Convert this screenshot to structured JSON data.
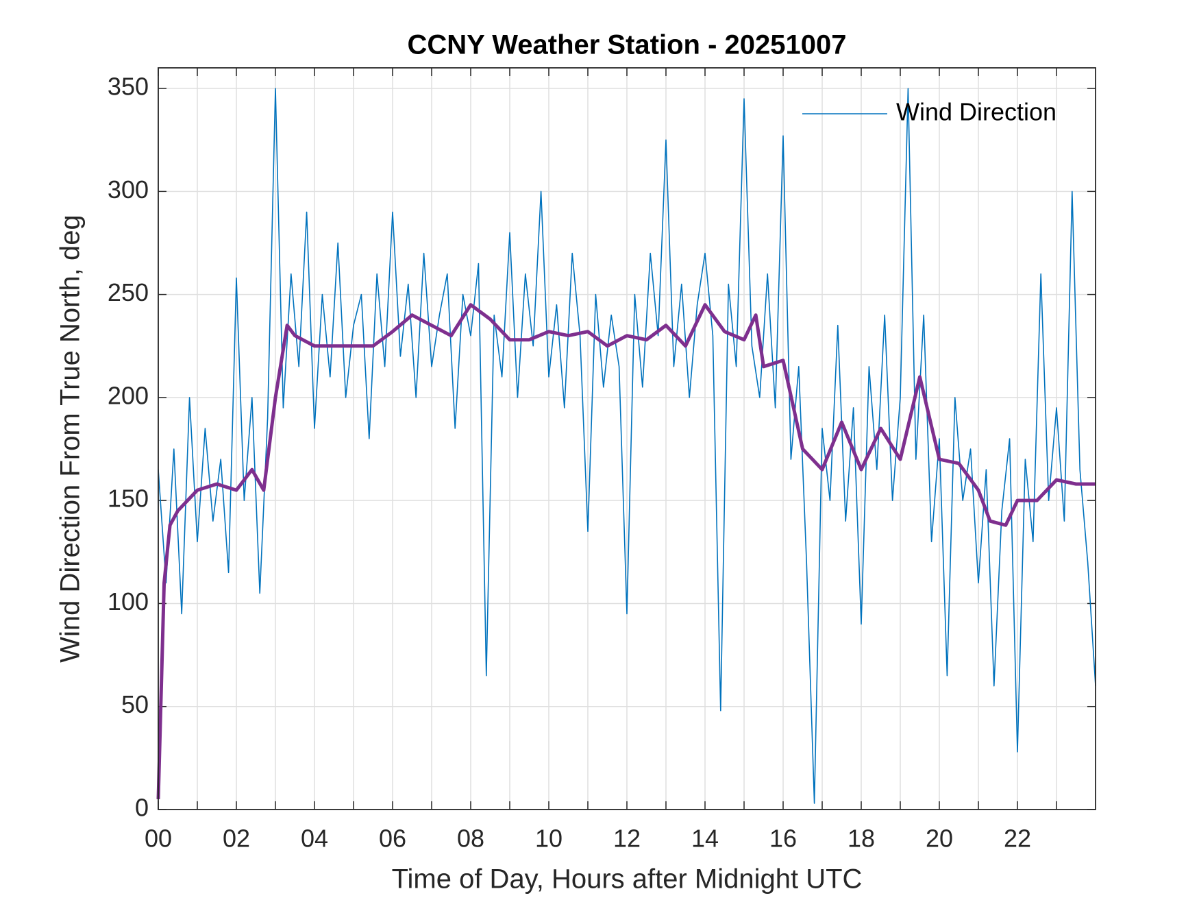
{
  "chart_data": {
    "type": "line",
    "title": "CCNY Weather Station - 20251007",
    "xlabel": "Time of Day, Hours after Midnight UTC",
    "ylabel": "Wind Direction From True North, deg",
    "xlim": [
      0,
      24
    ],
    "ylim": [
      0,
      360
    ],
    "xticks": [
      {
        "value": 0,
        "label": "00"
      },
      {
        "value": 2,
        "label": "02"
      },
      {
        "value": 4,
        "label": "04"
      },
      {
        "value": 6,
        "label": "06"
      },
      {
        "value": 8,
        "label": "08"
      },
      10,
      12,
      14,
      16,
      18,
      20,
      22
    ],
    "minor_xticks": [
      1,
      3,
      5,
      7,
      9,
      11,
      13,
      15,
      17,
      19,
      21,
      23
    ],
    "yticks": [
      0,
      50,
      100,
      150,
      200,
      250,
      300,
      350
    ],
    "grid": true,
    "legend": "top-right",
    "series": [
      {
        "name": "Wind Direction",
        "color": "#0072bd",
        "x": [
          0,
          0.2,
          0.4,
          0.6,
          0.8,
          1,
          1.2,
          1.4,
          1.6,
          1.8,
          2,
          2.2,
          2.4,
          2.6,
          2.8,
          3,
          3.2,
          3.4,
          3.6,
          3.8,
          4,
          4.2,
          4.4,
          4.6,
          4.8,
          5,
          5.2,
          5.4,
          5.6,
          5.8,
          6,
          6.2,
          6.4,
          6.6,
          6.8,
          7,
          7.2,
          7.4,
          7.6,
          7.8,
          8,
          8.2,
          8.4,
          8.6,
          8.8,
          9,
          9.2,
          9.4,
          9.6,
          9.8,
          10,
          10.2,
          10.4,
          10.6,
          10.8,
          11,
          11.2,
          11.4,
          11.6,
          11.8,
          12,
          12.2,
          12.4,
          12.6,
          12.8,
          13,
          13.2,
          13.4,
          13.6,
          13.8,
          14,
          14.2,
          14.4,
          14.6,
          14.8,
          15,
          15.2,
          15.4,
          15.6,
          15.8,
          16,
          16.2,
          16.4,
          16.6,
          16.8,
          17,
          17.2,
          17.4,
          17.6,
          17.8,
          18,
          18.2,
          18.4,
          18.6,
          18.8,
          19,
          19.2,
          19.4,
          19.6,
          19.8,
          20,
          20.2,
          20.4,
          20.6,
          20.8,
          21,
          21.2,
          21.4,
          21.6,
          21.8,
          22,
          22.2,
          22.4,
          22.6,
          22.8,
          23,
          23.2,
          23.4,
          23.6,
          23.8,
          24
        ],
        "values": [
          165,
          110,
          175,
          95,
          200,
          130,
          185,
          140,
          170,
          115,
          258,
          150,
          200,
          105,
          190,
          350,
          195,
          260,
          215,
          290,
          185,
          250,
          210,
          275,
          200,
          235,
          250,
          180,
          260,
          215,
          290,
          220,
          255,
          200,
          270,
          215,
          240,
          260,
          185,
          250,
          230,
          265,
          65,
          240,
          210,
          280,
          200,
          260,
          225,
          300,
          210,
          245,
          195,
          270,
          230,
          135,
          250,
          205,
          240,
          215,
          95,
          250,
          205,
          270,
          230,
          325,
          215,
          255,
          200,
          245,
          270,
          230,
          48,
          255,
          215,
          345,
          225,
          200,
          260,
          195,
          327,
          170,
          215,
          120,
          3,
          185,
          150,
          235,
          140,
          195,
          90,
          215,
          165,
          240,
          150,
          200,
          350,
          170,
          240,
          130,
          180,
          65,
          200,
          150,
          175,
          110,
          165,
          60,
          145,
          180,
          28,
          170,
          130,
          260,
          150,
          195,
          140,
          300,
          165,
          120,
          60
        ]
      },
      {
        "color": "#7e2f8e",
        "x": [
          0,
          0.15,
          0.3,
          0.5,
          1,
          1.5,
          2,
          2.4,
          2.7,
          3,
          3.3,
          3.5,
          4,
          4.5,
          5,
          5.5,
          6,
          6.5,
          7,
          7.5,
          8,
          8.5,
          9,
          9.5,
          10,
          10.5,
          11,
          11.5,
          12,
          12.5,
          13,
          13.5,
          14,
          14.5,
          15,
          15.3,
          15.5,
          16,
          16.5,
          17,
          17.5,
          18,
          18.5,
          19,
          19.5,
          20,
          20.5,
          21,
          21.3,
          21.7,
          22,
          22.5,
          23,
          23.5,
          24
        ],
        "values": [
          5,
          110,
          138,
          145,
          155,
          158,
          155,
          165,
          155,
          200,
          235,
          230,
          225,
          225,
          225,
          225,
          232,
          240,
          235,
          230,
          245,
          238,
          228,
          228,
          232,
          230,
          232,
          225,
          230,
          228,
          235,
          225,
          245,
          232,
          228,
          240,
          215,
          218,
          175,
          165,
          188,
          165,
          185,
          170,
          210,
          170,
          168,
          155,
          140,
          138,
          150,
          150,
          160,
          158,
          158
        ]
      }
    ]
  }
}
